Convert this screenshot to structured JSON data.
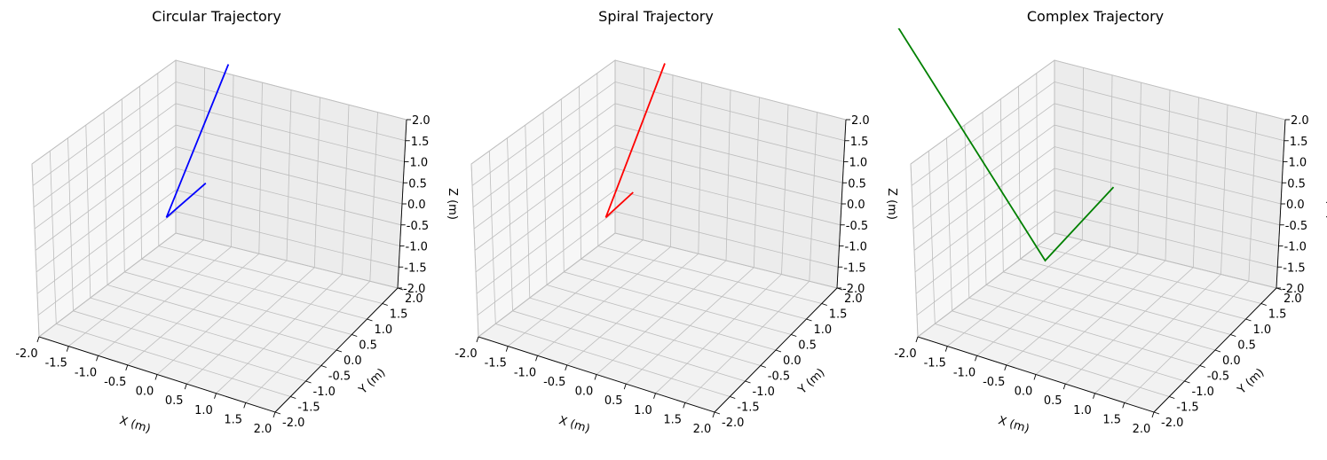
{
  "chart_data": [
    {
      "type": "line3d",
      "title": "Circular Trajectory",
      "xlabel": "X (m)",
      "ylabel": "Y (m)",
      "zlabel": "Z (m)",
      "xlim": [
        -2,
        2
      ],
      "ylim": [
        -2,
        2
      ],
      "zlim": [
        -2,
        2
      ],
      "ticks": [
        "-2.0",
        "-1.5",
        "-1.0",
        "-0.5",
        "0.0",
        "0.5",
        "1.0",
        "1.5",
        "2.0"
      ],
      "grid": true,
      "color": "#0000ff",
      "series": [
        {
          "x": [
            0.05,
            -1.0,
            -1.0
          ],
          "y": [
            0.0,
            0.0,
            1.15
          ],
          "z": [
            4.0,
            0.0,
            0.1
          ]
        }
      ]
    },
    {
      "type": "line3d",
      "title": "Spiral Trajectory",
      "xlabel": "X (m)",
      "ylabel": "Y (m)",
      "zlabel": "Z (m)",
      "xlim": [
        -2,
        2
      ],
      "ylim": [
        -2,
        2
      ],
      "zlim": [
        -2,
        2
      ],
      "ticks": [
        "-2.0",
        "-1.5",
        "-1.0",
        "-0.5",
        "0.0",
        "0.5",
        "1.0",
        "1.5",
        "2.0"
      ],
      "grid": true,
      "color": "#ff0000",
      "series": [
        {
          "x": [
            0.0,
            -1.0,
            -1.0
          ],
          "y": [
            0.0,
            0.0,
            0.8
          ],
          "z": [
            4.0,
            0.0,
            0.1
          ]
        }
      ]
    },
    {
      "type": "line3d",
      "title": "Complex Trajectory",
      "xlabel": "X (m)",
      "ylabel": "Y (m)",
      "zlabel": "Z (m)",
      "xlim": [
        -2,
        2
      ],
      "ylim": [
        -2,
        2
      ],
      "zlim": [
        -2,
        2
      ],
      "ticks": [
        "-2.0",
        "-1.5",
        "-1.0",
        "-0.5",
        "0.0",
        "0.5",
        "1.0",
        "1.5",
        "2.0"
      ],
      "grid": true,
      "color": "#008000",
      "series": [
        {
          "x": [
            -3.6,
            -1.0,
            -1.0
          ],
          "y": [
            0.0,
            0.0,
            2.0
          ],
          "z": [
            3.5,
            -1.0,
            -0.5
          ]
        }
      ]
    }
  ]
}
